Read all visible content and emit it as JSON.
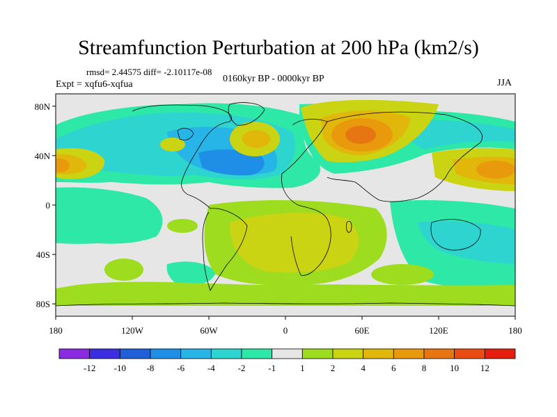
{
  "title": "Streamfunction Perturbation at 200 hPa (km2/s)",
  "stats": "rmsd= 2.44575 diff= -2.10117e-08",
  "experiment": "Expt = xqfu6-xqfua",
  "period": "0160kyr BP - 0000kyr BP",
  "season": "JJA",
  "lat_ticks": [
    {
      "label": "80N",
      "lat": 80
    },
    {
      "label": "40N",
      "lat": 40
    },
    {
      "label": "0",
      "lat": 0
    },
    {
      "label": "40S",
      "lat": -40
    },
    {
      "label": "80S",
      "lat": -80
    }
  ],
  "lon_ticks": [
    {
      "label": "180",
      "lon": -180
    },
    {
      "label": "120W",
      "lon": -120
    },
    {
      "label": "60W",
      "lon": -60
    },
    {
      "label": "0",
      "lon": 0
    },
    {
      "label": "60E",
      "lon": 60
    },
    {
      "label": "120E",
      "lon": 120
    },
    {
      "label": "180",
      "lon": 180
    }
  ],
  "colorbar": {
    "colors": [
      "#8a2be2",
      "#3b2ee0",
      "#1f5fd8",
      "#1e8ee6",
      "#27b4e6",
      "#2ed4cf",
      "#2ee8a8",
      "#e6e6e6",
      "#9ddc1e",
      "#cbd412",
      "#e0b70a",
      "#e89a0c",
      "#e67512",
      "#ea4c12",
      "#e61e10"
    ],
    "labels": [
      "-12",
      "-10",
      "-8",
      "-6",
      "-4",
      "-2",
      "-1",
      "1",
      "2",
      "4",
      "6",
      "8",
      "10",
      "12"
    ]
  },
  "palette": {
    "neutral": "#e6e6e6",
    "pos2": "#9ddc1e",
    "pos4": "#cbd412",
    "pos6": "#e0b70a",
    "pos8": "#e89a0c",
    "pos10": "#e67512",
    "neg1": "#2ee8a8",
    "neg2": "#2ed4cf",
    "neg4": "#27b4e6",
    "neg6": "#1e8ee6"
  }
}
